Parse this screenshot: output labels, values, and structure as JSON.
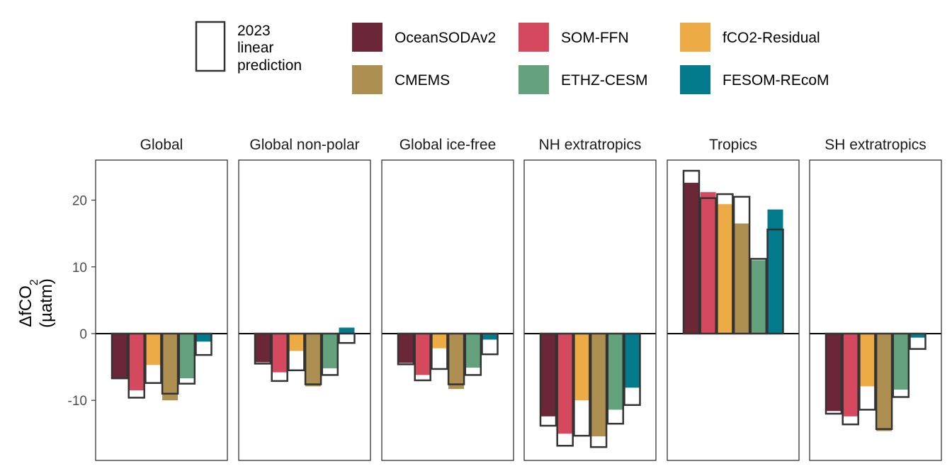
{
  "chart_data": {
    "type": "bar",
    "ylabel": "ΔfCO",
    "ylabel_sub": "2",
    "ylabel_unit": "(µatm)",
    "ylim": [
      -19,
      26
    ],
    "yticks": [
      20,
      10,
      0,
      -10
    ],
    "ytick_labels": [
      "20",
      "10",
      "0",
      "-10"
    ],
    "grid": false,
    "legend": {
      "position": "top",
      "outline_label": [
        "2023",
        "linear",
        "prediction"
      ]
    },
    "series": [
      {
        "name": "OceanSODAv2",
        "color": "#6b2737"
      },
      {
        "name": "SOM-FFN",
        "color": "#d5495e"
      },
      {
        "name": "fCO2-Residual",
        "color": "#edab45"
      },
      {
        "name": "CMEMS",
        "color": "#ae8f52"
      },
      {
        "name": "ETHZ-CESM",
        "color": "#64a27e"
      },
      {
        "name": "FESOM-REcoM",
        "color": "#047b8c"
      }
    ],
    "panels": [
      {
        "title": "Global",
        "values": [
          -6.8,
          -8.5,
          -4.7,
          -10.0,
          -6.7,
          -1.2
        ],
        "predictions": [
          -6.7,
          -9.6,
          -7.4,
          -9.0,
          -7.5,
          -3.2
        ]
      },
      {
        "title": "Global non-polar",
        "values": [
          -4.3,
          -5.8,
          -2.6,
          -7.9,
          -5.2,
          0.9
        ],
        "predictions": [
          -4.5,
          -7.1,
          -5.5,
          -7.6,
          -6.2,
          -1.4
        ]
      },
      {
        "title": "Global ice-free",
        "values": [
          -4.4,
          -6.2,
          -2.2,
          -8.3,
          -5.1,
          -0.9
        ],
        "predictions": [
          -4.6,
          -7.0,
          -5.3,
          -7.6,
          -6.2,
          -3.1
        ]
      },
      {
        "title": "NH extratropics",
        "values": [
          -12.4,
          -15.0,
          -10.0,
          -15.4,
          -11.4,
          -8.1
        ],
        "predictions": [
          -13.8,
          -16.8,
          -15.3,
          -17.0,
          -13.5,
          -10.7
        ]
      },
      {
        "title": "Tropics",
        "values": [
          22.6,
          21.2,
          19.4,
          16.5,
          11.0,
          18.6
        ],
        "predictions": [
          24.4,
          20.3,
          20.9,
          20.5,
          11.2,
          15.6
        ]
      },
      {
        "title": "SH extratropics",
        "values": [
          -11.6,
          -12.4,
          -7.9,
          -14.6,
          -8.4,
          -0.6
        ],
        "predictions": [
          -12.0,
          -13.6,
          -11.4,
          -14.3,
          -9.5,
          -2.3
        ]
      }
    ]
  }
}
